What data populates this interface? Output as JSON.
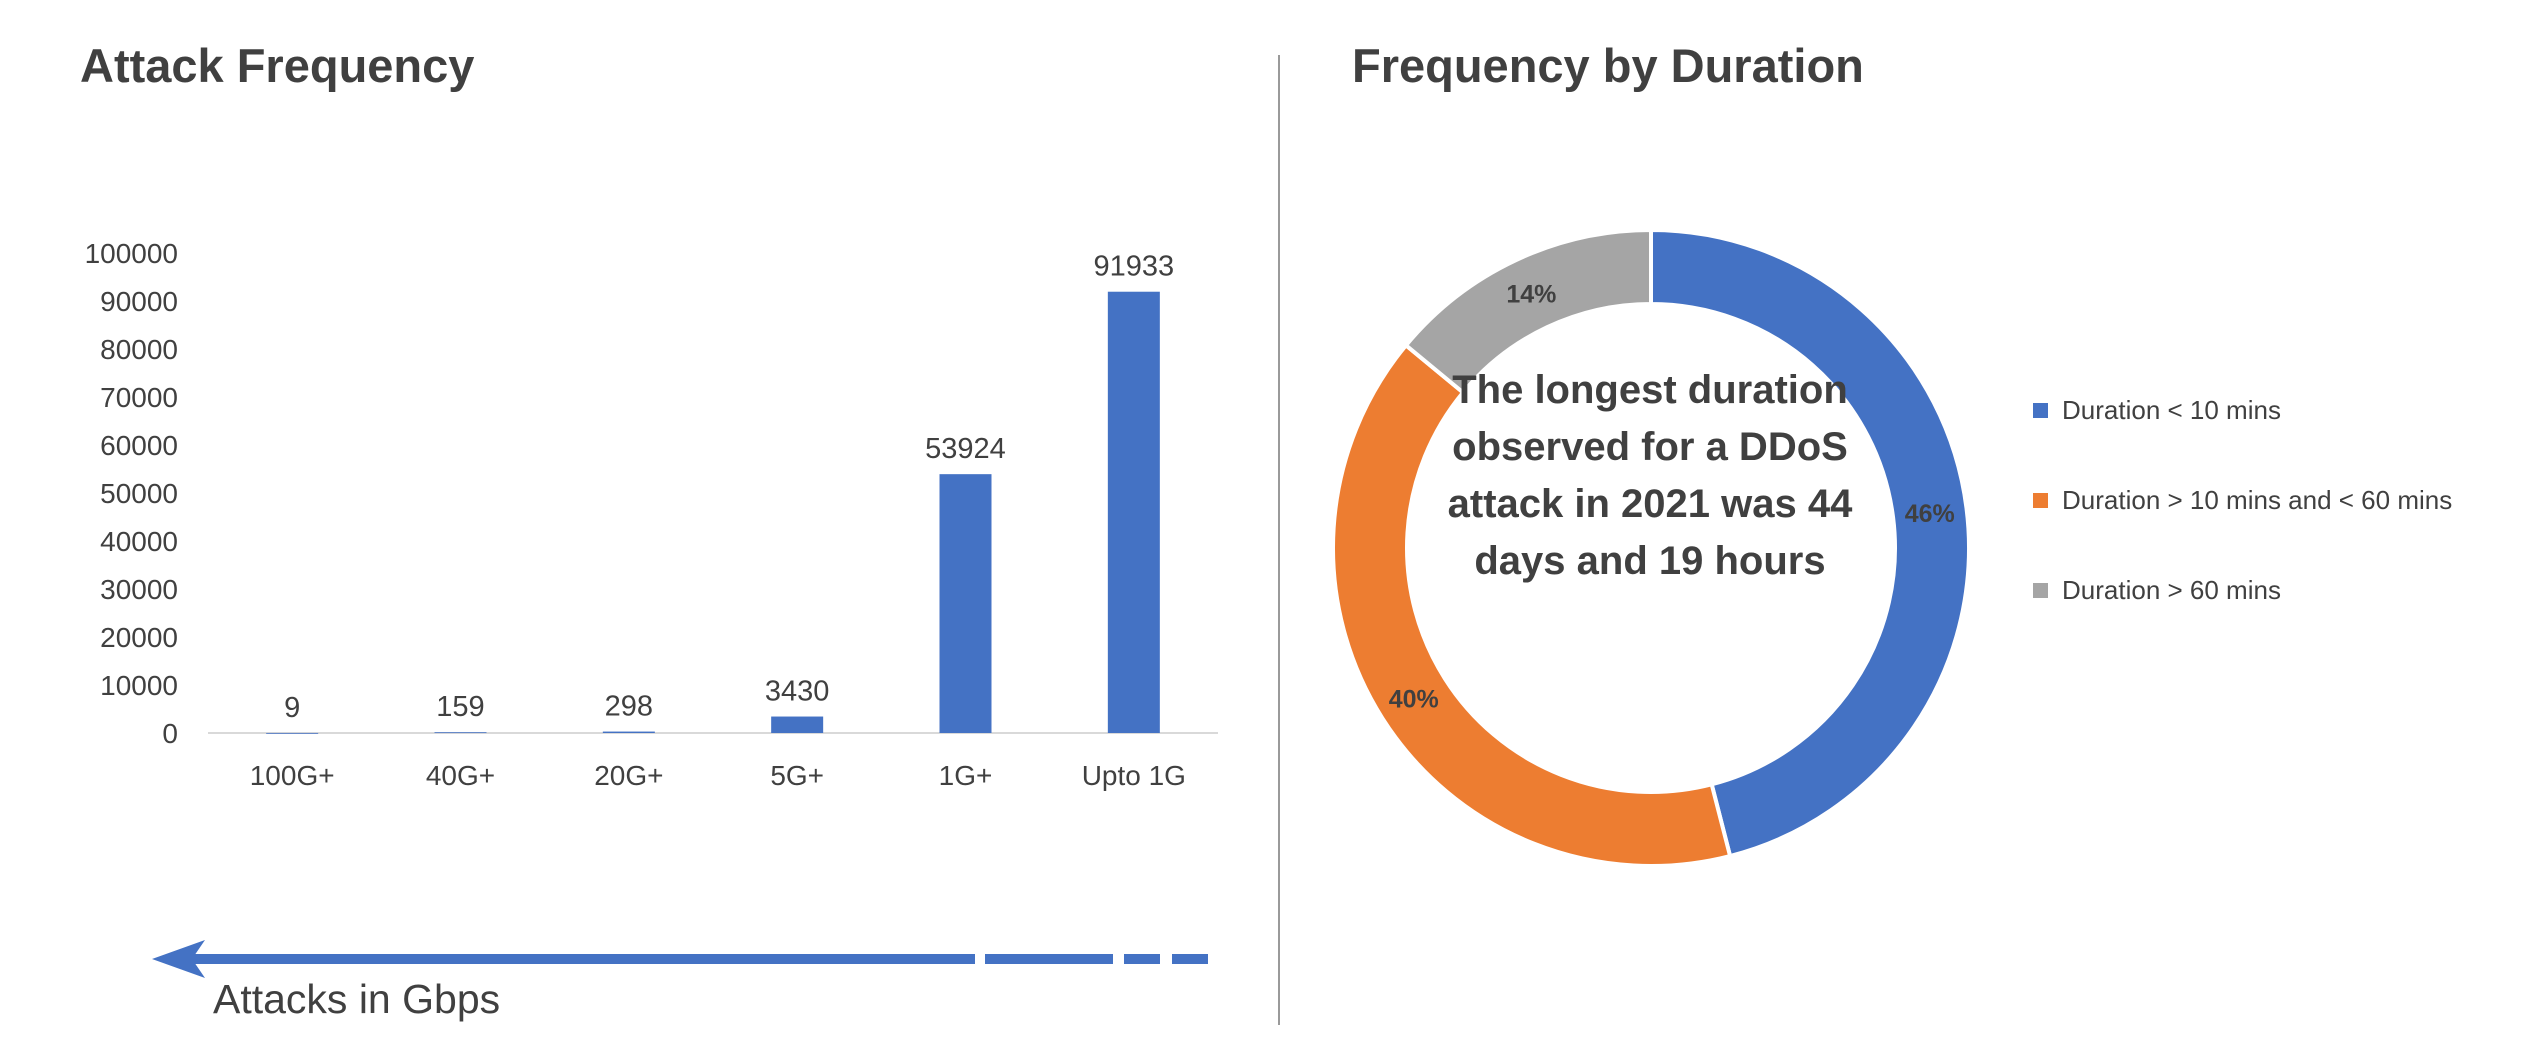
{
  "left_title": "Attack Frequency",
  "right_title": "Frequency by Duration",
  "arrow_label": "Attacks in Gbps",
  "center_text": "The longest duration observed for a DDoS attack in 2021 was 44 days and 19 hours",
  "colors": {
    "bar": "#4472C4",
    "slice1": "#4472C4",
    "slice2": "#ED7D31",
    "slice3": "#A5A5A5",
    "arrow": "#4472C4"
  },
  "chart_data": [
    {
      "type": "bar",
      "title": "Attack Frequency",
      "categories": [
        "100G+",
        "40G+",
        "20G+",
        "5G+",
        "1G+",
        "Upto 1G"
      ],
      "values": [
        9,
        159,
        298,
        3430,
        53924,
        91933
      ],
      "ylim": [
        0,
        100000
      ],
      "yticks": [
        0,
        10000,
        20000,
        30000,
        40000,
        50000,
        60000,
        70000,
        80000,
        90000,
        100000
      ],
      "grid": false,
      "legend": "none"
    },
    {
      "type": "pie",
      "title": "Frequency by Duration",
      "donut": true,
      "labels": [
        "Duration < 10 mins",
        "Duration > 10 mins and < 60 mins",
        "Duration > 60 mins"
      ],
      "values": [
        46,
        40,
        14
      ],
      "value_labels": [
        "46%",
        "40%",
        "14%"
      ],
      "legend": "right"
    }
  ]
}
